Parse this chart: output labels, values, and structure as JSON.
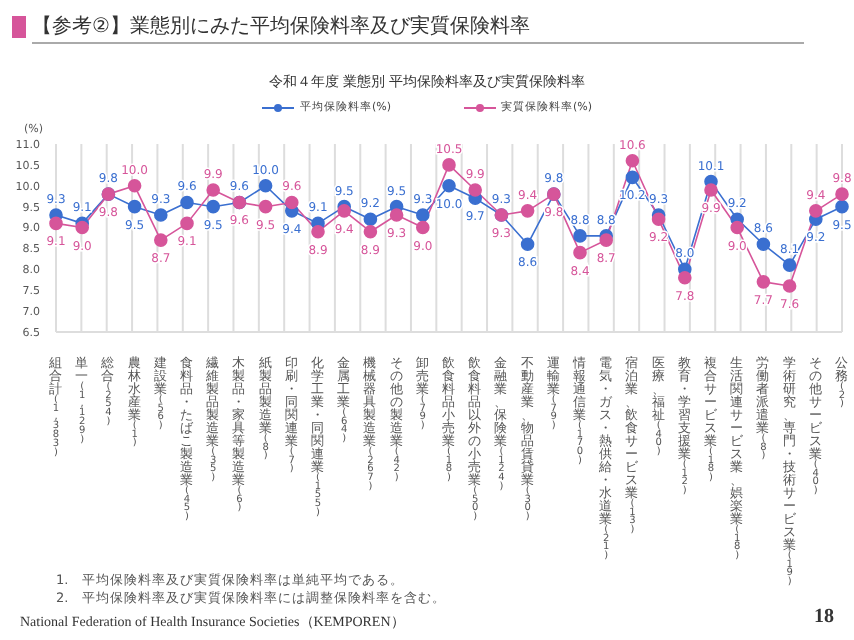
{
  "chart_data": {
    "type": "line",
    "title": "【参考②】業態別にみた平均保険料率及び実質保険料率",
    "subtitle": "令和４年度 業態別 平均保険料率及び実質保険料率",
    "ylabel": "(%)",
    "categories": [
      "組合計(1,383)",
      "単一(1,129)",
      "総合(254)",
      "農林水産業(1)",
      "建設業(56)",
      "食料品・たばこ製造業(45)",
      "繊維製品製造業(35)",
      "木製品・家具等製造業(6)",
      "紙製品製造業(8)",
      "印刷・同関連業(7)",
      "化学工業・同関連業(155)",
      "金属工業(64)",
      "機械器具製造業(267)",
      "その他の製造業(42)",
      "卸売業(79)",
      "飲食料品小売業(18)",
      "飲食料品以外の小売業(50)",
      "金融業、保険業(124)",
      "不動産業、物品賃貸業(30)",
      "運輸業(79)",
      "情報通信業(170)",
      "電気・ガス・熱供給・水道業(21)",
      "宿泊業、飲食サービス業(13)",
      "医療、福祉(40)",
      "教育・学習支援業(12)",
      "複合サービス業(18)",
      "生活関連サービス業、娯楽業(18)",
      "労働者派遣業(8)",
      "学術研究、専門・技術サービス業(19)",
      "その他サービス業(40)",
      "公務(2)"
    ],
    "series": [
      {
        "name": "平均保険料率(%)",
        "color": "#3a6fd0",
        "values": [
          9.3,
          9.1,
          9.8,
          9.5,
          9.3,
          9.6,
          9.5,
          9.6,
          10.0,
          9.4,
          9.1,
          9.5,
          9.2,
          9.5,
          9.3,
          10.0,
          9.7,
          9.3,
          8.6,
          9.8,
          8.8,
          8.8,
          10.2,
          9.3,
          8.0,
          10.1,
          9.2,
          8.6,
          8.1,
          9.2,
          9.5
        ],
        "value_labels": [
          "9.3",
          "9.1",
          "9.8",
          "9.5",
          "9.3",
          "9.6",
          "9.5",
          "9.6",
          "10.0",
          "9.4",
          "9.1",
          "9.5",
          "9.2",
          "9.5",
          "9.3",
          "10.0",
          "9.7",
          "9.3",
          "8.6",
          "9.8",
          "8.8",
          "8.8",
          "10.2",
          "9.3",
          "8.0",
          "10.1",
          "9.2",
          "8.6",
          "8.1",
          "9.2",
          "9.5"
        ]
      },
      {
        "name": "実質保険料率(%)",
        "color": "#d6559a",
        "values": [
          9.1,
          9.0,
          9.8,
          10.0,
          8.7,
          9.1,
          9.9,
          9.6,
          9.5,
          9.6,
          8.9,
          9.4,
          8.9,
          9.3,
          9.0,
          10.5,
          9.9,
          9.3,
          9.4,
          9.8,
          8.4,
          8.7,
          10.6,
          9.2,
          7.8,
          9.9,
          9.0,
          7.7,
          7.6,
          9.4,
          9.8
        ],
        "value_labels": [
          "9.1",
          "9.0",
          "9.8",
          "10.0",
          "8.7",
          "9.1",
          "9.9",
          "9.6",
          "9.5",
          "9.6",
          "8.9",
          "9.4",
          "8.9",
          "9.3",
          "9.0",
          "10.5",
          "9.9",
          "9.3",
          "9.4",
          "9.8",
          "8.4",
          "8.7",
          "10.6",
          "9.2",
          "7.8",
          "9.9",
          "9.0",
          "7.7",
          "7.6",
          "9.4",
          "9.8"
        ]
      }
    ],
    "ylim": [
      6.5,
      11.0
    ],
    "yticks": [
      6.5,
      {
        "value": 7,
        "label": "7.0"
      },
      7.5,
      {
        "value": 8,
        "label": "8.0"
      },
      8.5,
      {
        "value": 9,
        "label": "9.0"
      },
      9.5,
      {
        "value": 10,
        "label": "10.0"
      },
      10.5,
      {
        "value": 11,
        "label": "11.0"
      }
    ],
    "grid": "x",
    "legend": "top",
    "marker": "circle",
    "line_style": "solid",
    "annotations": [
      "1.　平均保険料率及び実質保険料率は単純平均である。",
      "2.　平均保険料率及び実質保険料率には調整保険料率を含む。",
      "National Federation of Health Insurance Societies（KEMPOREN）",
      "18"
    ]
  }
}
